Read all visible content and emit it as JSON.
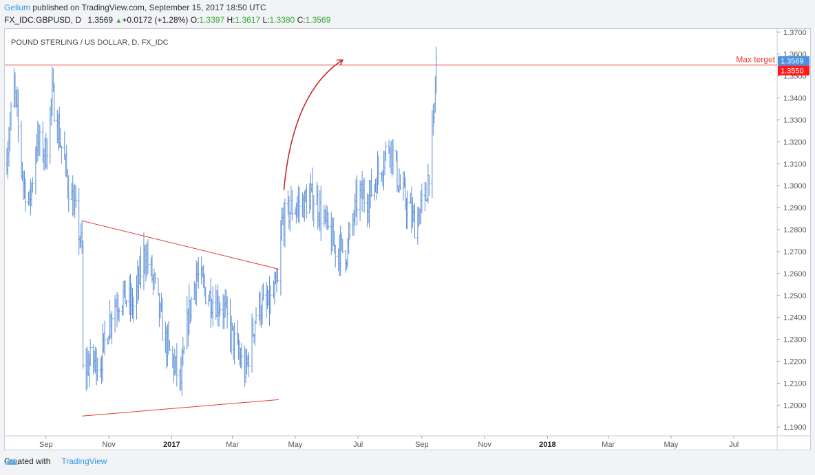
{
  "header": {
    "user": "Gelium",
    "published": " published on TradingView.com, September 15, 2017 18:50 UTC",
    "symbol": "FX_IDC:GBPUSD, D",
    "last": "1.3569",
    "change": "+0.0172 (+1.28%)",
    "o_label": "O:",
    "o_val": "1.3397",
    "h_label": "H:",
    "h_val": "1.3617",
    "l_label": "L:",
    "l_val": "1.3380",
    "c_label": "C:",
    "c_val": "1.3569"
  },
  "footer": {
    "created_with": "Created with",
    "brand": "TradingView"
  },
  "colors": {
    "candles": "#5b8ed6",
    "annotation": "#e53935",
    "arrow": "#c62828",
    "last_price_bg": "#4a90e2",
    "target_bg": "#ff1a1a",
    "accent": "#2f98e3"
  },
  "chart_data": {
    "type": "line",
    "title": "POUND STERLING / US DOLLAR, D, FX_IDC",
    "xlabel": "",
    "ylabel": "",
    "ylim": [
      1.186,
      1.3715
    ],
    "xlim": [
      "2016-07-23",
      "2018-08-12"
    ],
    "y_ticks": [
      "1.3700",
      "1.3600",
      "1.3500",
      "1.3400",
      "1.3300",
      "1.3200",
      "1.3100",
      "1.3000",
      "1.2900",
      "1.2800",
      "1.2700",
      "1.2600",
      "1.2500",
      "1.2400",
      "1.2300",
      "1.2200",
      "1.2100",
      "1.2000",
      "1.1900"
    ],
    "x_ticks": [
      {
        "label": "Sep",
        "date": "2016-09-01"
      },
      {
        "label": "Nov",
        "date": "2016-11-01"
      },
      {
        "label": "2017",
        "date": "2017-01-01",
        "bold": true
      },
      {
        "label": "Mar",
        "date": "2017-03-01"
      },
      {
        "label": "May",
        "date": "2017-05-01"
      },
      {
        "label": "Jul",
        "date": "2017-07-01"
      },
      {
        "label": "Sep",
        "date": "2017-09-01"
      },
      {
        "label": "Nov",
        "date": "2017-11-01"
      },
      {
        "label": "2018",
        "date": "2018-01-01",
        "bold": true
      },
      {
        "label": "Mar",
        "date": "2018-03-01"
      },
      {
        "label": "May",
        "date": "2018-05-01"
      },
      {
        "label": "Jul",
        "date": "2018-07-01"
      }
    ],
    "series": [
      {
        "values": [
          {
            "x": "2016-07-24",
            "y": 1.31
          },
          {
            "x": "2016-08-01",
            "y": 1.345
          },
          {
            "x": "2016-08-10",
            "y": 1.302
          },
          {
            "x": "2016-08-16",
            "y": 1.292
          },
          {
            "x": "2016-08-23",
            "y": 1.32
          },
          {
            "x": "2016-09-01",
            "y": 1.315
          },
          {
            "x": "2016-09-07",
            "y": 1.342
          },
          {
            "x": "2016-09-15",
            "y": 1.32
          },
          {
            "x": "2016-09-23",
            "y": 1.3
          },
          {
            "x": "2016-10-01",
            "y": 1.285
          },
          {
            "x": "2016-10-06",
            "y": 1.27
          },
          {
            "x": "2016-10-07",
            "y": 1.215
          },
          {
            "x": "2016-10-14",
            "y": 1.22
          },
          {
            "x": "2016-10-24",
            "y": 1.22
          },
          {
            "x": "2016-11-05",
            "y": 1.245
          },
          {
            "x": "2016-11-15",
            "y": 1.25
          },
          {
            "x": "2016-11-25",
            "y": 1.245
          },
          {
            "x": "2016-12-06",
            "y": 1.27
          },
          {
            "x": "2016-12-15",
            "y": 1.255
          },
          {
            "x": "2016-12-25",
            "y": 1.23
          },
          {
            "x": "2017-01-10",
            "y": 1.21
          },
          {
            "x": "2017-01-17",
            "y": 1.24
          },
          {
            "x": "2017-01-25",
            "y": 1.26
          },
          {
            "x": "2017-02-05",
            "y": 1.25
          },
          {
            "x": "2017-02-20",
            "y": 1.245
          },
          {
            "x": "2017-03-05",
            "y": 1.225
          },
          {
            "x": "2017-03-14",
            "y": 1.215
          },
          {
            "x": "2017-03-25",
            "y": 1.245
          },
          {
            "x": "2017-04-05",
            "y": 1.245
          },
          {
            "x": "2017-04-15",
            "y": 1.255
          },
          {
            "x": "2017-04-18",
            "y": 1.283
          },
          {
            "x": "2017-04-28",
            "y": 1.29
          },
          {
            "x": "2017-05-10",
            "y": 1.292
          },
          {
            "x": "2017-05-20",
            "y": 1.295
          },
          {
            "x": "2017-05-28",
            "y": 1.285
          },
          {
            "x": "2017-06-08",
            "y": 1.272
          },
          {
            "x": "2017-06-20",
            "y": 1.27
          },
          {
            "x": "2017-07-01",
            "y": 1.295
          },
          {
            "x": "2017-07-12",
            "y": 1.295
          },
          {
            "x": "2017-07-20",
            "y": 1.305
          },
          {
            "x": "2017-08-01",
            "y": 1.32
          },
          {
            "x": "2017-08-10",
            "y": 1.3
          },
          {
            "x": "2017-08-20",
            "y": 1.288
          },
          {
            "x": "2017-08-25",
            "y": 1.283
          },
          {
            "x": "2017-09-05",
            "y": 1.295
          },
          {
            "x": "2017-09-12",
            "y": 1.325
          },
          {
            "x": "2017-09-15",
            "y": 1.3569
          }
        ]
      }
    ],
    "annotations": [
      {
        "type": "trendline",
        "from": {
          "x": "2016-10-06",
          "y": 1.284
        },
        "to": {
          "x": "2017-04-15",
          "y": 1.262
        }
      },
      {
        "type": "trendline",
        "from": {
          "x": "2016-10-06",
          "y": 1.195
        },
        "to": {
          "x": "2017-04-15",
          "y": 1.2025
        }
      },
      {
        "type": "arrow",
        "from": {
          "x": "2017-04-20",
          "y": 1.298
        },
        "to": {
          "x": "2017-06-15",
          "y": 1.357
        }
      },
      {
        "type": "hline",
        "y": 1.355,
        "label": "Max terget"
      }
    ],
    "price_labels": [
      {
        "label": "1.3569",
        "kind": "last"
      },
      {
        "label": "1.3550",
        "kind": "target"
      }
    ],
    "grid": false,
    "legend": "none"
  }
}
